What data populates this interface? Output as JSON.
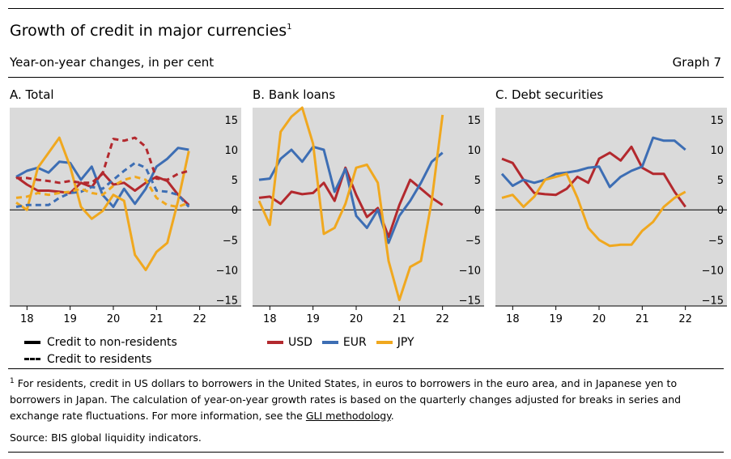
{
  "header": {
    "title": "Growth of credit in major currencies",
    "title_note": "1",
    "subtitle": "Year-on-year changes, in per cent",
    "graph_number": "Graph 7"
  },
  "legend": {
    "non_residents": "Credit to non-residents",
    "residents": "Credit to residents",
    "usd": "USD",
    "eur": "EUR",
    "jpy": "JPY"
  },
  "footnote": {
    "marker": "1",
    "text": "For residents, credit in US dollars to borrowers in the United States, in euros to borrowers in the euro area, and in Japanese yen to borrowers in Japan. The calculation of year-on-year growth rates is based on the quarterly changes adjusted for breaks in series and exchange rate fluctuations. For more information, see the",
    "link_text": "GLI methodology",
    "end": "."
  },
  "source": "Source: BIS global liquidity indicators.",
  "colors": {
    "usd": "#b3292e",
    "eur": "#3d6eb4",
    "jpy": "#f0a81f",
    "panel_bg": "#dadada"
  },
  "chart_data": [
    {
      "type": "line",
      "panel": "A. Total",
      "title": "A. Total",
      "x_start": 2017.75,
      "x_step": 0.25,
      "xlim": [
        2017.6,
        2022.4
      ],
      "x_ticks": [
        18,
        19,
        20,
        21,
        22
      ],
      "ylim": [
        -16,
        17
      ],
      "y_ticks": [
        15,
        10,
        5,
        0,
        -5,
        -10,
        -15
      ],
      "y_axis_side": "right",
      "series": [
        {
          "name": "USD",
          "group": "non-residents",
          "style": "solid",
          "color": "#b3292e",
          "values": [
            5.5,
            4.2,
            3.2,
            3.2,
            3.0,
            2.8,
            4.5,
            3.8,
            6.2,
            4.2,
            4.5,
            3.2,
            4.5,
            5.5,
            4.8,
            2.5,
            0.8
          ]
        },
        {
          "name": "EUR",
          "group": "non-residents",
          "style": "solid",
          "color": "#3d6eb4",
          "values": [
            5.5,
            6.5,
            7.0,
            6.2,
            8.0,
            7.8,
            5.0,
            7.2,
            2.5,
            0.5,
            3.5,
            1.0,
            3.5,
            7.2,
            8.5,
            10.3,
            10.0
          ]
        },
        {
          "name": "JPY",
          "group": "non-residents",
          "style": "solid",
          "color": "#f0a81f",
          "values": [
            1.2,
            0.0,
            7.0,
            9.5,
            12.0,
            7.2,
            0.5,
            -1.5,
            -0.2,
            2.5,
            1.5,
            -7.5,
            -10.0,
            -7.0,
            -5.5,
            1.5,
            9.8
          ]
        },
        {
          "name": "USD",
          "group": "residents",
          "style": "dashed",
          "color": "#b3292e",
          "values": [
            5.3,
            5.3,
            5.0,
            4.8,
            4.5,
            4.8,
            4.5,
            4.5,
            6.0,
            11.8,
            11.5,
            12.0,
            10.5,
            5.2,
            5.0,
            6.0,
            6.5
          ]
        },
        {
          "name": "EUR",
          "group": "residents",
          "style": "dashed",
          "color": "#3d6eb4",
          "values": [
            0.5,
            0.8,
            0.8,
            0.8,
            2.0,
            2.8,
            3.0,
            3.8,
            3.5,
            5.0,
            6.5,
            7.8,
            7.0,
            3.2,
            3.0,
            2.5,
            0.5
          ]
        },
        {
          "name": "JPY",
          "group": "residents",
          "style": "dashed",
          "color": "#f0a81f",
          "values": [
            2.0,
            2.2,
            2.8,
            2.5,
            2.8,
            3.0,
            3.5,
            2.8,
            2.5,
            4.0,
            5.0,
            5.5,
            5.0,
            2.0,
            0.8,
            0.5,
            1.2
          ]
        }
      ]
    },
    {
      "type": "line",
      "panel": "B. Bank loans",
      "title": "B. Bank loans",
      "x_start": 2017.75,
      "x_step": 0.25,
      "xlim": [
        2017.6,
        2022.4
      ],
      "x_ticks": [
        18,
        19,
        20,
        21,
        22
      ],
      "ylim": [
        -16,
        17
      ],
      "y_ticks": [
        15,
        10,
        5,
        0,
        -5,
        -10,
        -15
      ],
      "y_axis_side": "right",
      "series": [
        {
          "name": "USD",
          "style": "solid",
          "color": "#b3292e",
          "values": [
            2.0,
            2.2,
            1.0,
            3.0,
            2.6,
            2.8,
            4.5,
            1.5,
            7.0,
            2.5,
            -1.2,
            0.3,
            -4.5,
            0.8,
            5.0,
            3.5,
            2.0,
            0.8
          ]
        },
        {
          "name": "EUR",
          "style": "solid",
          "color": "#3d6eb4",
          "values": [
            5.0,
            5.2,
            8.5,
            10.0,
            8.0,
            10.5,
            10.0,
            3.0,
            6.8,
            -1.0,
            -3.0,
            0.0,
            -5.5,
            -1.0,
            1.5,
            4.5,
            8.0,
            9.5
          ]
        },
        {
          "name": "JPY",
          "style": "solid",
          "color": "#f0a81f",
          "values": [
            1.5,
            -2.5,
            13.0,
            15.5,
            17.0,
            11.0,
            -4.0,
            -3.0,
            1.0,
            7.0,
            7.5,
            4.5,
            -8.5,
            -15.0,
            -9.5,
            -8.5,
            1.5,
            15.8
          ]
        }
      ]
    },
    {
      "type": "line",
      "panel": "C. Debt securities",
      "title": "C. Debt securities",
      "x_start": 2017.75,
      "x_step": 0.25,
      "xlim": [
        2017.6,
        2022.4
      ],
      "x_ticks": [
        18,
        19,
        20,
        21,
        22
      ],
      "ylim": [
        -16,
        17
      ],
      "y_ticks": [
        15,
        10,
        5,
        0,
        -5,
        -10,
        -15
      ],
      "y_axis_side": "right",
      "series": [
        {
          "name": "USD",
          "style": "solid",
          "color": "#b3292e",
          "values": [
            8.5,
            7.8,
            5.0,
            2.8,
            2.6,
            2.5,
            3.5,
            5.5,
            4.5,
            8.5,
            9.5,
            8.2,
            10.5,
            7.0,
            6.0,
            6.0,
            3.0,
            0.5
          ]
        },
        {
          "name": "EUR",
          "style": "solid",
          "color": "#3d6eb4",
          "values": [
            6.0,
            4.0,
            5.0,
            4.5,
            5.0,
            6.0,
            6.2,
            6.5,
            7.0,
            7.2,
            3.8,
            5.5,
            6.5,
            7.2,
            12.0,
            11.5,
            11.5,
            10.0
          ]
        },
        {
          "name": "JPY",
          "style": "solid",
          "color": "#f0a81f",
          "values": [
            2.0,
            2.5,
            0.5,
            2.2,
            5.0,
            5.5,
            6.0,
            2.0,
            -3.0,
            -5.0,
            -6.0,
            -5.8,
            -5.8,
            -3.5,
            -2.0,
            0.5,
            2.0,
            3.0
          ]
        }
      ]
    }
  ]
}
